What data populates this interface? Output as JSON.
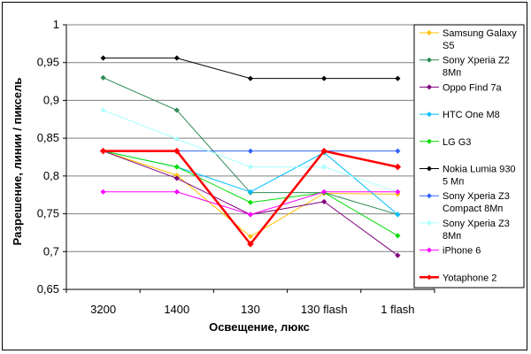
{
  "chart_data": {
    "type": "line",
    "title": "",
    "xlabel": "Освещение, люкс",
    "ylabel": "Разрешение, линии / пиксель",
    "ylim": [
      0.65,
      1.0
    ],
    "yticks": [
      "0,65",
      "0,7",
      "0,75",
      "0,8",
      "0,85",
      "0,9",
      "0,95",
      "1"
    ],
    "grid": true,
    "legend_position": "right",
    "categories": [
      "3200",
      "1400",
      "130",
      "130 flash",
      "1 flash"
    ],
    "series": [
      {
        "name": [
          "Samsung Galaxy",
          "S5"
        ],
        "color": "#FFC000",
        "marker": "diamond",
        "values": [
          0.833,
          0.801,
          0.72,
          0.777,
          0.776
        ]
      },
      {
        "name": [
          "Sony Xperia Z2",
          "8Мп"
        ],
        "color": "#2E8B57",
        "marker": "diamond",
        "values": [
          0.93,
          0.887,
          0.778,
          0.778,
          0.749
        ]
      },
      {
        "name": [
          "Oppo Find 7a"
        ],
        "color": "#800080",
        "marker": "diamond",
        "values": [
          0.833,
          0.797,
          0.749,
          0.766,
          0.695
        ]
      },
      {
        "name": [
          "HTC One M8"
        ],
        "color": "#00BFFF",
        "marker": "diamond",
        "values": [
          0.833,
          0.812,
          0.779,
          0.831,
          0.749
        ]
      },
      {
        "name": [
          "LG G3"
        ],
        "color": "#00DD00",
        "marker": "diamond",
        "values": [
          0.833,
          0.812,
          0.765,
          0.778,
          0.721
        ]
      },
      {
        "name": [
          "Nokia Lumia 930",
          "5 Мп"
        ],
        "color": "#000000",
        "marker": "diamond",
        "values": [
          0.956,
          0.956,
          0.929,
          0.929,
          0.929
        ]
      },
      {
        "name": [
          "Sony Xperia Z3",
          "Compact 8Мп"
        ],
        "color": "#3366FF",
        "marker": "diamond",
        "values": [
          0.833,
          0.833,
          0.833,
          0.833,
          0.833
        ]
      },
      {
        "name": [
          "Sony Xperia Z3",
          "8Мп"
        ],
        "color": "#AAFFFF",
        "marker": "diamond",
        "values": [
          0.887,
          0.849,
          0.812,
          0.812,
          0.779
        ]
      },
      {
        "name": [
          "iPhone 6"
        ],
        "color": "#FF00FF",
        "marker": "diamond",
        "values": [
          0.779,
          0.779,
          0.749,
          0.779,
          0.779
        ]
      },
      {
        "name": [
          "Yotaphone 2"
        ],
        "color": "#FF0000",
        "marker": "diamond",
        "thick": true,
        "values": [
          0.833,
          0.833,
          0.71,
          0.833,
          0.812
        ]
      }
    ]
  }
}
